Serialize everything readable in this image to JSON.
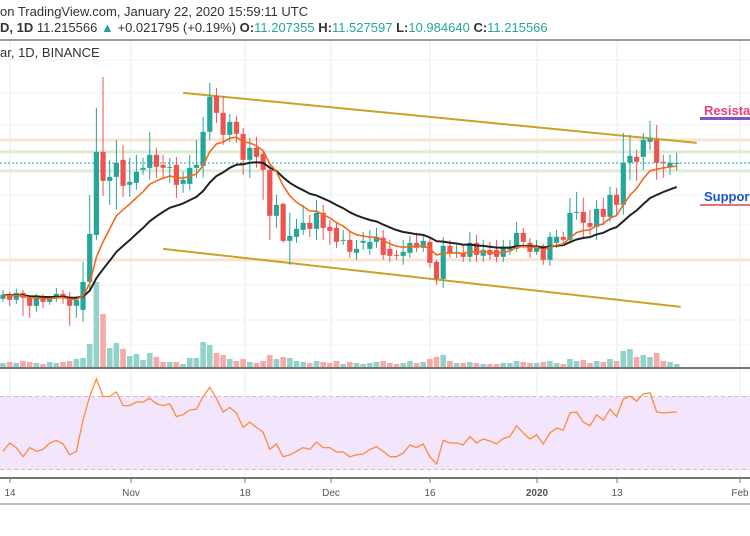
{
  "header": {
    "line1": "on TradingView.com, January 22, 2020 15:59:11 UTC",
    "symbol_prefix": "D, 1D",
    "last": "11.215566",
    "change": "+0.021795 (+0.19%)",
    "open_label": "O:",
    "open": "11.207355",
    "high_label": "H:",
    "high": "11.527597",
    "low_label": "L:",
    "low": "10.984640",
    "close_label": "C:",
    "close": "11.215566",
    "up_icon": "triangle-up-icon"
  },
  "symbol_line": "ar, 1D, BINANCE",
  "annotations": {
    "resistance": "Resistance",
    "support": "Support"
  },
  "colors": {
    "up": "#26a69a",
    "down": "#ef5350",
    "ma_fast": "#f26b1d",
    "ma_slow": "#222222",
    "channel": "#c9a227",
    "rsi": "#ff8a3d",
    "rsi_band": "#f3e5fc",
    "resistance_text": "#ec407a",
    "resistance_underline": "#7e57c2",
    "support_text": "#1e53c8",
    "support_underline": "#e57373"
  },
  "chart_data": {
    "type": "candlestick",
    "interval": "1D",
    "x_ticks": [
      "14",
      "Nov",
      "18",
      "Dec",
      "16",
      "2020",
      "13",
      "Feb"
    ],
    "candles_ohlc": [
      [
        7.14,
        7.41,
        7.05,
        7.26
      ],
      [
        7.23,
        7.35,
        6.93,
        7.11
      ],
      [
        7.11,
        7.44,
        6.99,
        7.32
      ],
      [
        7.32,
        7.41,
        6.63,
        7.17
      ],
      [
        7.17,
        7.23,
        6.57,
        6.93
      ],
      [
        6.93,
        7.29,
        6.75,
        7.17
      ],
      [
        7.17,
        7.29,
        6.87,
        7.05
      ],
      [
        7.05,
        7.23,
        6.96,
        7.14
      ],
      [
        7.14,
        7.47,
        7.05,
        7.29
      ],
      [
        7.29,
        7.41,
        6.99,
        7.2
      ],
      [
        7.2,
        7.35,
        6.33,
        6.93
      ],
      [
        6.93,
        7.23,
        6.57,
        7.11
      ],
      [
        6.81,
        8.25,
        6.45,
        7.65
      ],
      [
        7.65,
        10.26,
        7.41,
        9.09
      ],
      [
        9.06,
        12.87,
        8.91,
        11.55
      ],
      [
        11.55,
        13.8,
        10.23,
        10.68
      ],
      [
        10.68,
        11.31,
        9.96,
        10.8
      ],
      [
        10.8,
        11.91,
        9.81,
        11.22
      ],
      [
        11.31,
        11.76,
        10.2,
        10.53
      ],
      [
        10.56,
        11.37,
        10.2,
        10.65
      ],
      [
        10.62,
        11.46,
        10.41,
        10.95
      ],
      [
        11.01,
        11.37,
        10.86,
        11.07
      ],
      [
        11.07,
        12.15,
        10.71,
        11.46
      ],
      [
        11.46,
        11.67,
        10.77,
        11.1
      ],
      [
        11.16,
        11.46,
        10.77,
        11.07
      ],
      [
        11.1,
        11.37,
        10.62,
        11.1
      ],
      [
        11.16,
        11.4,
        10.17,
        10.56
      ],
      [
        10.59,
        10.95,
        10.32,
        10.71
      ],
      [
        10.59,
        11.46,
        10.41,
        11.07
      ],
      [
        11.07,
        11.91,
        10.77,
        11.16
      ],
      [
        11.13,
        12.6,
        10.77,
        12.15
      ],
      [
        12.15,
        13.62,
        11.91,
        13.2
      ],
      [
        13.23,
        13.47,
        12.42,
        12.72
      ],
      [
        12.72,
        13.23,
        11.76,
        12.06
      ],
      [
        12.06,
        12.69,
        11.85,
        12.45
      ],
      [
        12.45,
        12.63,
        11.82,
        12.09
      ],
      [
        12.09,
        12.27,
        10.86,
        11.31
      ],
      [
        11.31,
        11.97,
        10.77,
        11.67
      ],
      [
        11.67,
        12.0,
        11.07,
        11.4
      ],
      [
        11.49,
        11.61,
        10.11,
        11.01
      ],
      [
        11.01,
        11.16,
        8.91,
        9.63
      ],
      [
        9.63,
        10.26,
        9.27,
        9.96
      ],
      [
        9.99,
        10.02,
        8.82,
        8.88
      ],
      [
        8.88,
        9.72,
        8.16,
        9.03
      ],
      [
        9.0,
        9.54,
        8.82,
        9.24
      ],
      [
        9.21,
        9.96,
        9.06,
        9.42
      ],
      [
        9.42,
        9.66,
        9.0,
        9.24
      ],
      [
        9.24,
        10.11,
        8.91,
        9.72
      ],
      [
        9.72,
        9.96,
        8.91,
        9.27
      ],
      [
        9.3,
        9.51,
        8.76,
        9.18
      ],
      [
        9.27,
        9.45,
        8.67,
        8.85
      ],
      [
        8.88,
        9.21,
        8.76,
        8.91
      ],
      [
        8.91,
        9.15,
        8.37,
        8.55
      ],
      [
        8.52,
        8.91,
        8.31,
        8.64
      ],
      [
        8.82,
        9.15,
        8.61,
        8.88
      ],
      [
        8.64,
        9.21,
        8.46,
        8.85
      ],
      [
        8.85,
        9.27,
        8.67,
        9.0
      ],
      [
        8.97,
        9.21,
        8.31,
        8.46
      ],
      [
        8.64,
        8.91,
        8.25,
        8.43
      ],
      [
        8.46,
        8.61,
        8.31,
        8.43
      ],
      [
        8.43,
        8.91,
        8.16,
        8.55
      ],
      [
        8.52,
        9.03,
        8.37,
        8.82
      ],
      [
        8.82,
        9.12,
        8.55,
        8.67
      ],
      [
        8.67,
        9.03,
        8.55,
        8.88
      ],
      [
        8.85,
        8.97,
        8.07,
        8.22
      ],
      [
        8.25,
        8.31,
        7.56,
        7.74
      ],
      [
        7.74,
        9.0,
        7.47,
        8.73
      ],
      [
        8.73,
        8.91,
        8.37,
        8.52
      ],
      [
        8.52,
        8.76,
        8.37,
        8.55
      ],
      [
        8.52,
        8.76,
        8.25,
        8.4
      ],
      [
        8.4,
        9.15,
        8.25,
        8.82
      ],
      [
        8.82,
        9.06,
        8.25,
        8.46
      ],
      [
        8.43,
        8.91,
        8.25,
        8.61
      ],
      [
        8.61,
        8.85,
        8.31,
        8.46
      ],
      [
        8.61,
        8.91,
        8.25,
        8.4
      ],
      [
        8.4,
        8.91,
        8.25,
        8.67
      ],
      [
        8.61,
        8.91,
        8.46,
        8.7
      ],
      [
        8.64,
        9.45,
        8.55,
        9.12
      ],
      [
        9.12,
        9.27,
        8.67,
        8.85
      ],
      [
        8.82,
        8.97,
        8.37,
        8.55
      ],
      [
        8.55,
        8.91,
        8.46,
        8.73
      ],
      [
        8.73,
        8.79,
        8.16,
        8.31
      ],
      [
        8.31,
        9.15,
        8.13,
        9.0
      ],
      [
        8.82,
        9.21,
        8.67,
        9.0
      ],
      [
        9.0,
        9.15,
        8.76,
        8.91
      ],
      [
        8.91,
        10.17,
        8.85,
        9.72
      ],
      [
        9.72,
        10.35,
        9.51,
        9.75
      ],
      [
        9.75,
        10.17,
        8.97,
        9.42
      ],
      [
        9.42,
        9.81,
        9.06,
        9.3
      ],
      [
        9.3,
        10.11,
        8.91,
        9.84
      ],
      [
        9.84,
        10.17,
        9.36,
        9.6
      ],
      [
        9.6,
        10.5,
        9.45,
        10.26
      ],
      [
        10.26,
        10.47,
        9.66,
        9.96
      ],
      [
        9.96,
        12.12,
        9.66,
        11.22
      ],
      [
        11.22,
        12.06,
        10.71,
        11.43
      ],
      [
        11.4,
        11.61,
        10.68,
        11.25
      ],
      [
        11.4,
        12.12,
        11.01,
        11.91
      ],
      [
        11.85,
        12.48,
        11.61,
        11.94
      ],
      [
        11.91,
        12.36,
        10.71,
        11.22
      ],
      [
        11.25,
        11.46,
        10.77,
        11.22
      ],
      [
        11.1,
        11.46,
        10.86,
        11.22
      ],
      [
        11.207355,
        11.527597,
        10.98464,
        11.215566
      ]
    ],
    "volume_relative": [
      4,
      5,
      4,
      6,
      5,
      4,
      3,
      5,
      4,
      5,
      6,
      8,
      9,
      23,
      85,
      53,
      19,
      24,
      18,
      11,
      13,
      7,
      14,
      10,
      5,
      5,
      5,
      3,
      9,
      9,
      25,
      22,
      14,
      12,
      8,
      6,
      8,
      5,
      4,
      6,
      12,
      8,
      10,
      9,
      6,
      5,
      4,
      6,
      5,
      4,
      6,
      3,
      5,
      4,
      3,
      4,
      5,
      6,
      4,
      3,
      4,
      6,
      4,
      5,
      8,
      10,
      12,
      6,
      4,
      4,
      5,
      4,
      3,
      3,
      3,
      4,
      4,
      6,
      5,
      4,
      4,
      5,
      6,
      4,
      3,
      8,
      6,
      7,
      4,
      6,
      5,
      8,
      6,
      16,
      18,
      10,
      12,
      10,
      14,
      6,
      5,
      3
    ],
    "rsi": [
      40,
      44.5,
      42,
      37,
      42,
      40,
      41,
      44.5,
      46,
      44,
      38,
      40,
      57,
      70,
      79.6,
      70,
      70,
      72.5,
      65,
      65,
      67,
      67,
      69,
      66,
      65,
      66,
      59,
      60,
      62.6,
      63,
      70,
      75,
      69,
      61.5,
      64,
      61,
      53,
      56,
      53,
      50.5,
      41,
      44,
      37,
      38,
      40,
      42,
      41,
      45,
      42,
      42,
      39.6,
      39.6,
      37,
      38,
      38.5,
      41,
      42.5,
      40,
      37,
      37,
      39,
      43.5,
      42,
      44,
      37,
      33,
      46,
      44.5,
      44.5,
      43.5,
      48,
      44.5,
      46.7,
      45.6,
      44,
      47,
      48,
      54,
      50,
      46.7,
      49,
      44,
      50,
      52.7,
      51.6,
      61,
      61.5,
      56,
      54,
      60,
      57,
      63,
      59,
      68.6,
      70.3,
      67.5,
      71.4,
      72,
      61.5,
      61,
      61.3,
      61.5
    ],
    "rsi_band": [
      30,
      70
    ],
    "last_price_line": 11.215566,
    "horizontal_levels": [
      {
        "price": 11.91,
        "color": "#fbe3cf"
      },
      {
        "price": 11.55,
        "color": "#dcedd6"
      },
      {
        "price": 10.98,
        "color": "#dcedd6"
      },
      {
        "price": 8.31,
        "color": "#fbe3cf"
      }
    ],
    "channel": {
      "upper": {
        "from_price": 13.32,
        "to_price": 11.82
      },
      "lower": {
        "from_price": 8.64,
        "to_price": 6.9
      }
    },
    "grid": true
  }
}
